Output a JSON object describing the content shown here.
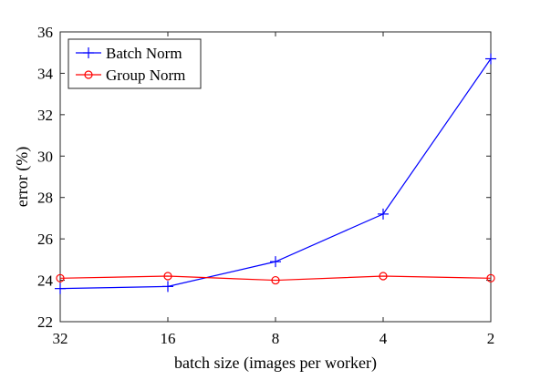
{
  "chart_data": {
    "type": "line",
    "xlabel": "batch size (images per worker)",
    "ylabel": "error (%)",
    "categories": [
      "32",
      "16",
      "8",
      "4",
      "2"
    ],
    "ylim": [
      22,
      36
    ],
    "yticks": [
      22,
      24,
      26,
      28,
      30,
      32,
      34,
      36
    ],
    "grid": false,
    "legend_position": "top-left",
    "series": [
      {
        "name": "Batch Norm",
        "color": "#0000ff",
        "marker": "plus",
        "values": [
          23.6,
          23.7,
          24.9,
          27.2,
          34.7
        ]
      },
      {
        "name": "Group Norm",
        "color": "#ff0000",
        "marker": "circle",
        "values": [
          24.1,
          24.2,
          24.0,
          24.2,
          24.1
        ]
      }
    ]
  }
}
